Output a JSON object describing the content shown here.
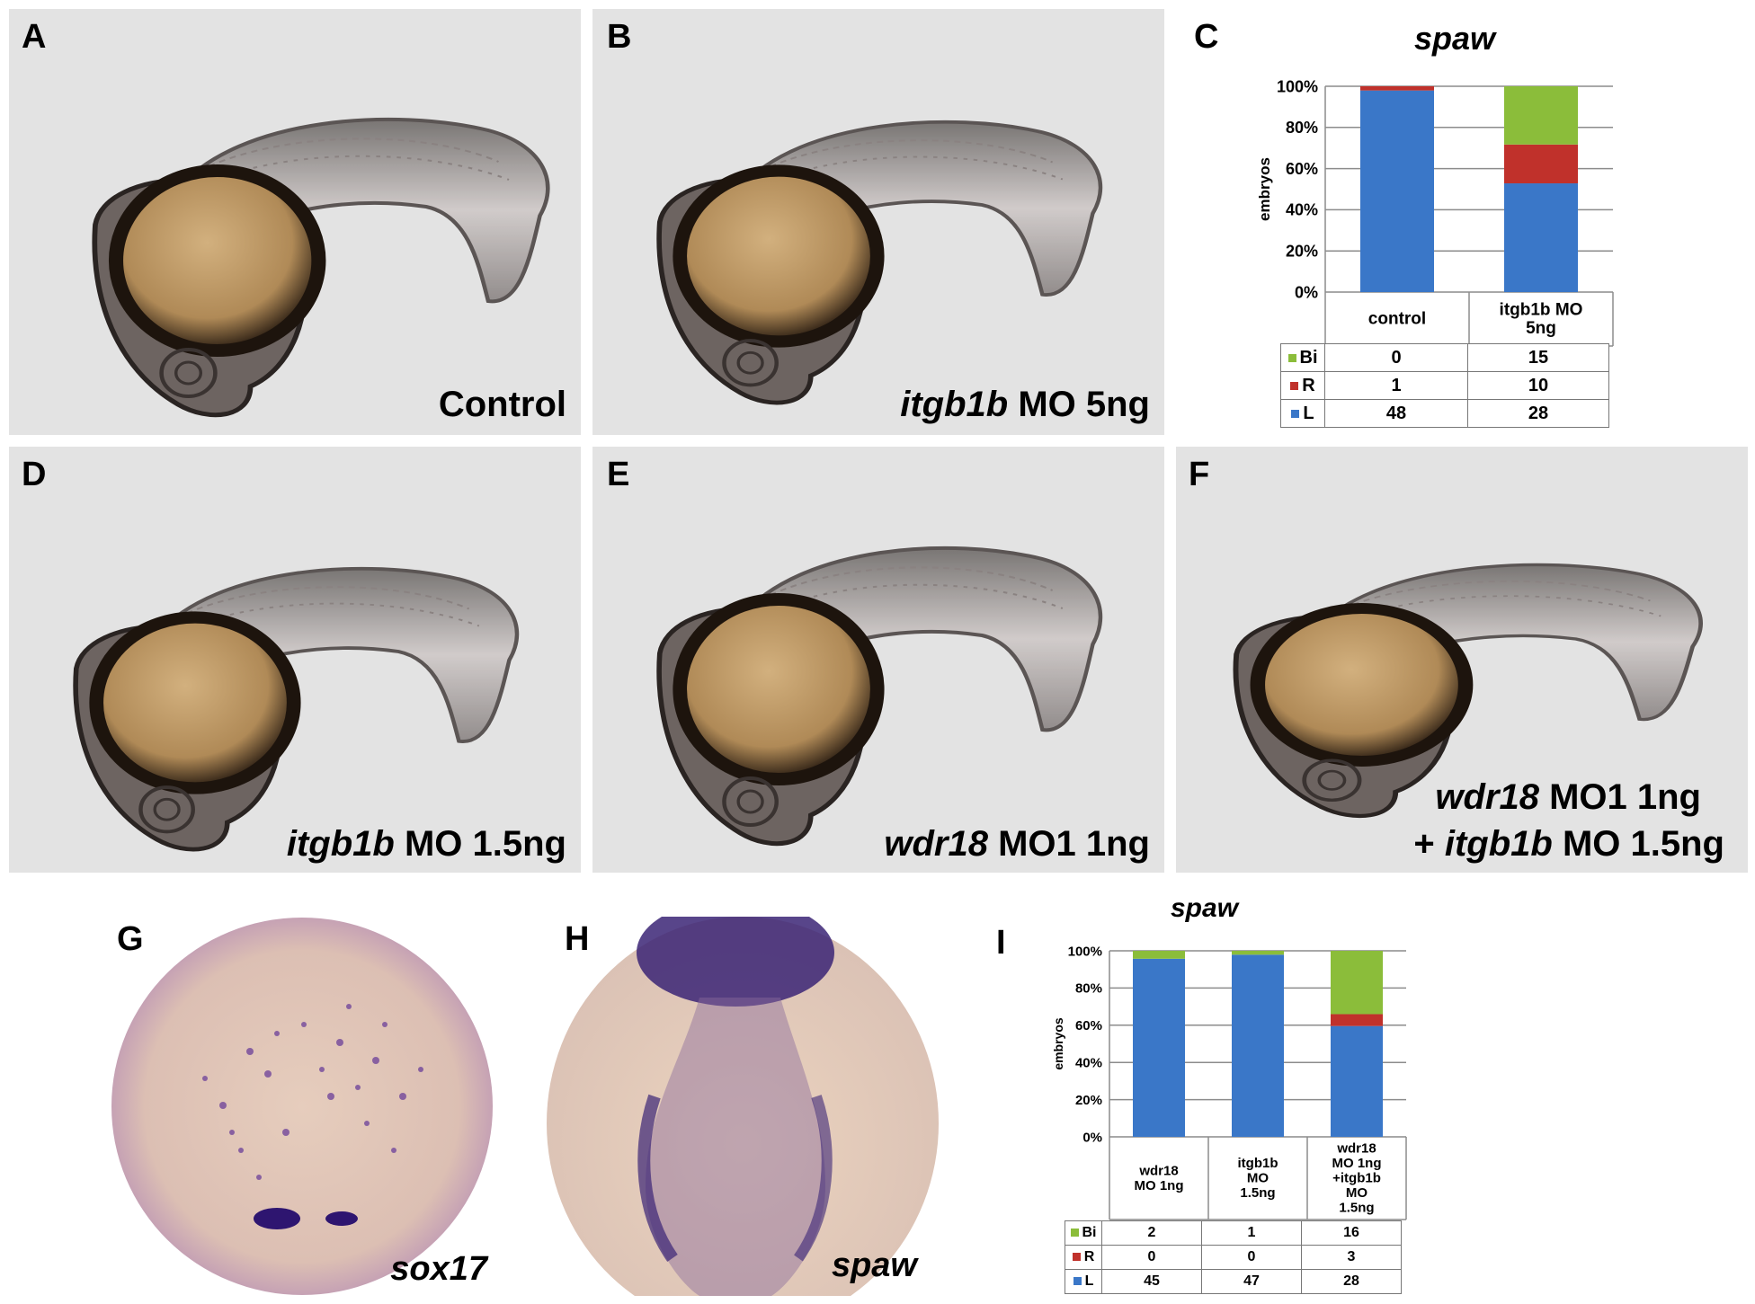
{
  "panels": {
    "A": {
      "letter": "A",
      "caption_plain": "Control"
    },
    "B": {
      "letter": "B",
      "caption_italic": "itgb1b",
      "caption_rest": " MO 5ng"
    },
    "C": {
      "letter": "C"
    },
    "D": {
      "letter": "D",
      "caption_italic": "itgb1b",
      "caption_rest": " MO 1.5ng"
    },
    "E": {
      "letter": "E",
      "caption_italic": "wdr18",
      "caption_rest": " MO1 1ng"
    },
    "F": {
      "letter": "F",
      "caption_line1_italic": "wdr18",
      "caption_line1_rest": " MO1 1ng",
      "caption_line2_pre": "+ ",
      "caption_line2_italic": "itgb1b",
      "caption_line2_rest": " MO 1.5ng"
    },
    "G": {
      "letter": "G",
      "caption_italic": "sox17"
    },
    "H": {
      "letter": "H",
      "caption_italic": "spaw"
    },
    "I": {
      "letter": "I"
    }
  },
  "colors": {
    "L": "#3a77c8",
    "R": "#c0312b",
    "Bi": "#8bbd3a",
    "panel_bg": "#e3e3e3"
  },
  "chart_data": [
    {
      "panel": "C",
      "type": "bar",
      "stacked": true,
      "percent": true,
      "title": "spaw",
      "ylabel": "embryos",
      "ylim": [
        0,
        100
      ],
      "yticks": [
        "0%",
        "20%",
        "40%",
        "60%",
        "80%",
        "100%"
      ],
      "categories": [
        "control",
        "itgb1b MO 5ng"
      ],
      "series": [
        {
          "name": "L",
          "values": [
            48,
            28
          ]
        },
        {
          "name": "R",
          "values": [
            1,
            10
          ]
        },
        {
          "name": "Bi",
          "values": [
            0,
            15
          ]
        }
      ],
      "legend": "bottom-table",
      "grid": true
    },
    {
      "panel": "I",
      "type": "bar",
      "stacked": true,
      "percent": true,
      "title": "spaw",
      "ylabel": "embryos",
      "ylim": [
        0,
        100
      ],
      "yticks": [
        "0%",
        "20%",
        "40%",
        "60%",
        "80%",
        "100%"
      ],
      "categories": [
        "wdr18 MO 1ng",
        "itgb1b MO 1.5ng",
        "wdr18 MO 1ng +itgb1b MO 1.5ng"
      ],
      "series": [
        {
          "name": "L",
          "values": [
            45,
            47,
            28
          ]
        },
        {
          "name": "R",
          "values": [
            0,
            0,
            3
          ]
        },
        {
          "name": "Bi",
          "values": [
            2,
            1,
            16
          ]
        }
      ],
      "legend": "bottom-table",
      "grid": true
    }
  ]
}
